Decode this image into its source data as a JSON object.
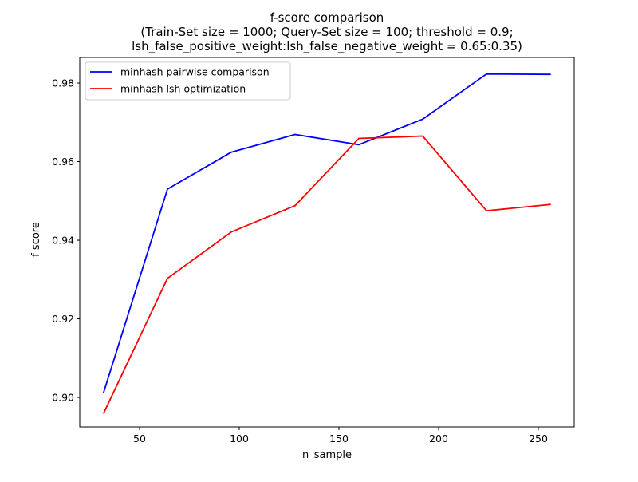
{
  "chart_data": {
    "type": "line",
    "title": "f-score comparison",
    "subtitle_lines": [
      "(Train-Set size = 1000; Query-Set size = 100; threshold = 0.9;",
      "lsh_false_positive_weight:lsh_false_negative_weight = 0.65:0.35)"
    ],
    "xlabel": "n_sample",
    "ylabel": "f score",
    "xlim": [
      20,
      268
    ],
    "ylim": [
      0.8925,
      0.9865
    ],
    "xticks": [
      50,
      100,
      150,
      200,
      250
    ],
    "xtick_labels": [
      "50",
      "100",
      "150",
      "200",
      "250"
    ],
    "yticks": [
      0.9,
      0.92,
      0.94,
      0.96,
      0.98
    ],
    "ytick_labels": [
      "0.90",
      "0.92",
      "0.94",
      "0.96",
      "0.98"
    ],
    "grid": false,
    "legend_position": "top-left",
    "x": [
      32,
      64,
      96,
      128,
      160,
      192,
      224,
      256
    ],
    "series": [
      {
        "name": "minhash pairwise comparison",
        "color": "#0000ff",
        "values": [
          0.9013,
          0.953,
          0.9624,
          0.9669,
          0.9643,
          0.9708,
          0.9823,
          0.9822
        ]
      },
      {
        "name": "minhash lsh optimization",
        "color": "#ff0000",
        "values": [
          0.896,
          0.9303,
          0.9421,
          0.9488,
          0.9659,
          0.9665,
          0.9475,
          0.9491
        ]
      }
    ]
  }
}
